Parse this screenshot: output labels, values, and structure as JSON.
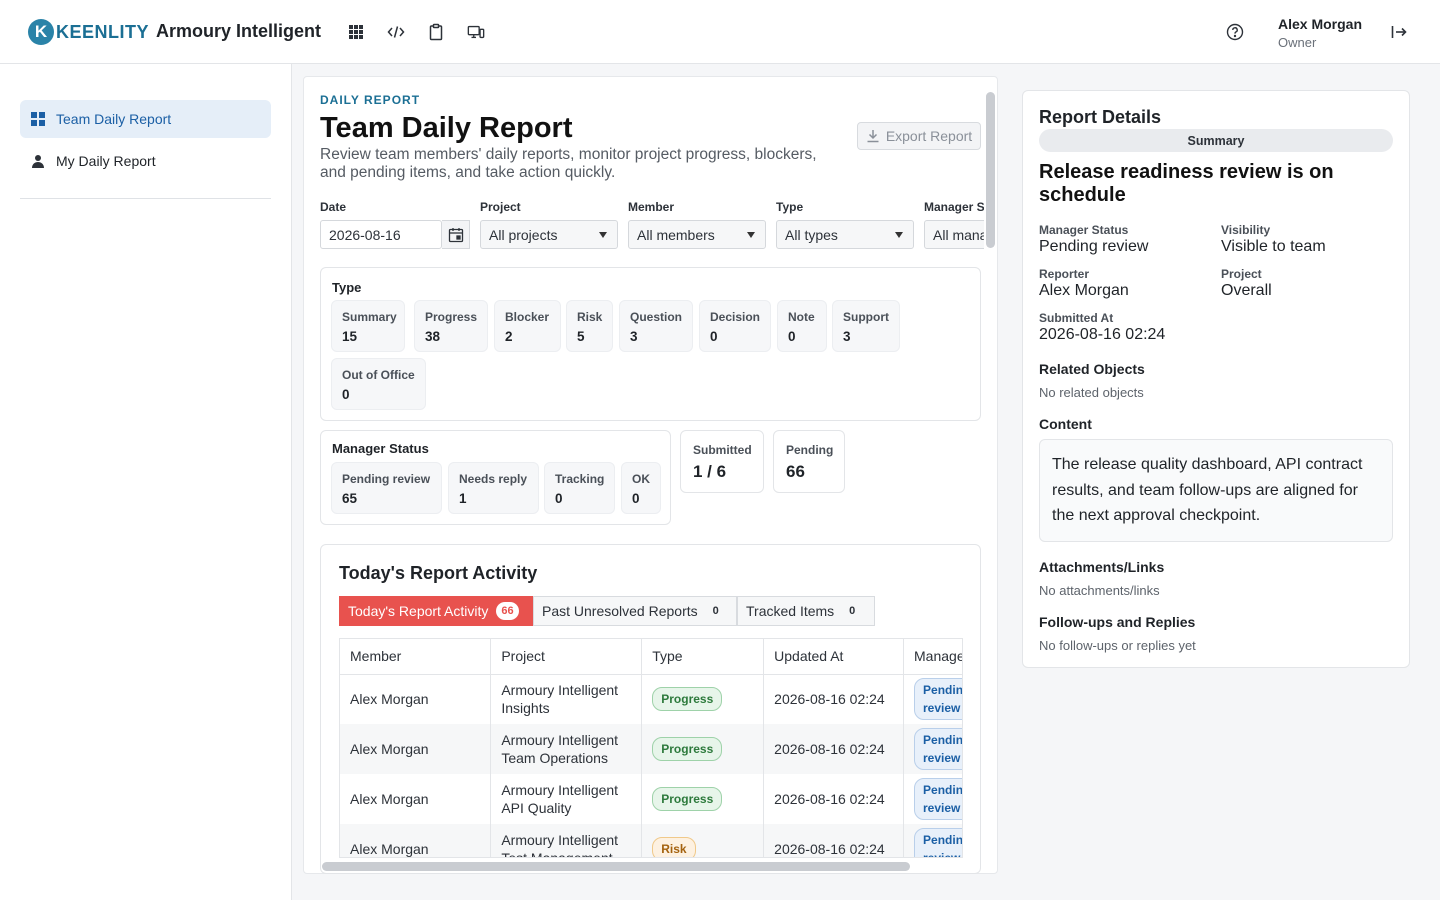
{
  "header": {
    "logo_letter": "K",
    "logo_text": "KEENLITY",
    "app_title": "Armoury Intelligent",
    "user_name": "Alex Morgan",
    "user_role": "Owner"
  },
  "sidebar": {
    "items": [
      {
        "label": "Team Daily Report",
        "icon": "grid-icon",
        "active": true
      },
      {
        "label": "My Daily Report",
        "icon": "person-icon",
        "active": false
      }
    ]
  },
  "page": {
    "eyebrow": "DAILY REPORT",
    "title": "Team Daily Report",
    "description": "Review team members' daily reports, monitor project progress, blockers, and pending items, and take action quickly.",
    "export_label": "Export Report"
  },
  "filters": {
    "date_label": "Date",
    "date_value": "2026-08-16",
    "project_label": "Project",
    "project_value": "All projects",
    "member_label": "Member",
    "member_value": "All members",
    "type_label": "Type",
    "type_value": "All types",
    "manager_label": "Manager Status",
    "manager_value": "All manager statuses"
  },
  "type_card": {
    "title": "Type",
    "items": [
      {
        "label": "Summary",
        "value": "15"
      },
      {
        "label": "Progress",
        "value": "38"
      },
      {
        "label": "Blocker",
        "value": "2"
      },
      {
        "label": "Risk",
        "value": "5"
      },
      {
        "label": "Question",
        "value": "3"
      },
      {
        "label": "Decision",
        "value": "0"
      },
      {
        "label": "Note",
        "value": "0"
      },
      {
        "label": "Support",
        "value": "3"
      },
      {
        "label": "Out of Office",
        "value": "0"
      }
    ]
  },
  "manager_card": {
    "title": "Manager Status",
    "items": [
      {
        "label": "Pending review",
        "value": "65"
      },
      {
        "label": "Needs reply",
        "value": "1"
      },
      {
        "label": "Tracking",
        "value": "0"
      },
      {
        "label": "OK",
        "value": "0"
      }
    ]
  },
  "stats": {
    "submitted_label": "Submitted",
    "submitted_value": "1 / 6",
    "pending_label": "Pending",
    "pending_value": "66"
  },
  "activity": {
    "title": "Today's Report Activity",
    "tabs": [
      {
        "label": "Today's Report Activity",
        "count": "66"
      },
      {
        "label": "Past Unresolved Reports",
        "count": "0"
      },
      {
        "label": "Tracked Items",
        "count": "0"
      }
    ],
    "columns": [
      "Member",
      "Project",
      "Type",
      "Updated At",
      "Manager Status"
    ],
    "rows": [
      {
        "member": "Alex Morgan",
        "project": "Armoury Intelligent Insights",
        "type": "Progress",
        "updated": "2026-08-16 02:24",
        "status": "Pending review"
      },
      {
        "member": "Alex Morgan",
        "project": "Armoury Intelligent Team Operations",
        "type": "Progress",
        "updated": "2026-08-16 02:24",
        "status": "Pending review"
      },
      {
        "member": "Alex Morgan",
        "project": "Armoury Intelligent API Quality",
        "type": "Progress",
        "updated": "2026-08-16 02:24",
        "status": "Pending review"
      },
      {
        "member": "Alex Morgan",
        "project": "Armoury Intelligent Test Management",
        "type": "Risk",
        "updated": "2026-08-16 02:24",
        "status": "Pending review"
      }
    ]
  },
  "details": {
    "title": "Report Details",
    "pill": "Summary",
    "headline": "Release readiness review is on schedule",
    "manager_status_label": "Manager Status",
    "manager_status_value": "Pending review",
    "visibility_label": "Visibility",
    "visibility_value": "Visible to team",
    "reporter_label": "Reporter",
    "reporter_value": "Alex Morgan",
    "project_label": "Project",
    "project_value": "Overall",
    "submitted_label": "Submitted At",
    "submitted_value": "2026-08-16 02:24",
    "related_title": "Related Objects",
    "related_empty": "No related objects",
    "content_title": "Content",
    "content_text": "The release quality dashboard, API contract results, and team follow-ups are aligned for the next approval checkpoint.",
    "attach_title": "Attachments/Links",
    "attach_empty": "No attachments/links",
    "follow_title": "Follow-ups and Replies",
    "follow_empty": "No follow-ups or replies yet"
  }
}
